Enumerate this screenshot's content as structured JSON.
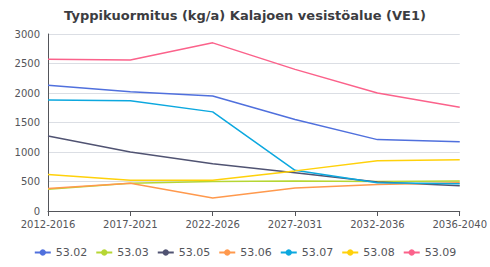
{
  "chart_data": {
    "type": "line",
    "title": "Typpikuormitus (kg/a) Kalajoen vesistöalue (VE1)",
    "categories": [
      "2012-2016",
      "2017-2021",
      "2022-2026",
      "2027-2031",
      "2032-2036",
      "2036-2040"
    ],
    "series": [
      {
        "name": "53.02",
        "values": [
          2130,
          2020,
          1950,
          1550,
          1210,
          1175
        ]
      },
      {
        "name": "53.03",
        "values": [
          370,
          470,
          500,
          510,
          500,
          510
        ]
      },
      {
        "name": "53.05",
        "values": [
          1270,
          1000,
          800,
          650,
          490,
          430
        ]
      },
      {
        "name": "53.06",
        "values": [
          380,
          470,
          220,
          390,
          450,
          480
        ]
      },
      {
        "name": "53.07",
        "values": [
          1880,
          1870,
          1680,
          690,
          480,
          460
        ]
      },
      {
        "name": "53.08",
        "values": [
          620,
          520,
          520,
          680,
          850,
          870
        ]
      },
      {
        "name": "53.09",
        "values": [
          2570,
          2560,
          2850,
          2400,
          2000,
          1760
        ]
      }
    ],
    "ylim": [
      0,
      3000
    ],
    "yticks": [
      0,
      500,
      1000,
      1500,
      2000,
      2500,
      3000
    ],
    "grid": true,
    "legend": "bottom"
  }
}
